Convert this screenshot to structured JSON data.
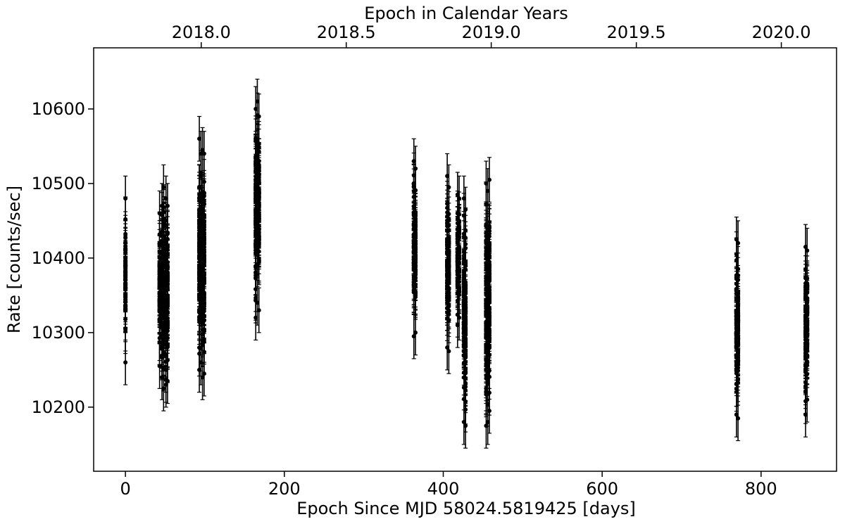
{
  "chart_data": {
    "type": "scatter",
    "title": "",
    "xlabel": "Epoch Since MJD 58024.5819425 [days]",
    "ylabel": "Rate [counts/sec]",
    "top_xlabel": "Epoch in Calendar Years",
    "xlim": [
      -40,
      895
    ],
    "ylim": [
      10114,
      10682
    ],
    "xticks": [
      0,
      200,
      400,
      600,
      800
    ],
    "yticks": [
      10200,
      10300,
      10400,
      10500,
      10600
    ],
    "top_xticks": [
      {
        "label": "2018.0",
        "day": 95.4
      },
      {
        "label": "2018.5",
        "day": 277.9
      },
      {
        "label": "2019.0",
        "day": 460.4
      },
      {
        "label": "2019.5",
        "day": 643.0
      },
      {
        "label": "2020.0",
        "day": 825.5
      }
    ],
    "marker_color": "#000000",
    "grid": false,
    "error_bar_typical": 30,
    "groups": [
      {
        "day": 0,
        "range": [
          10260,
          10480
        ]
      },
      {
        "day": 43,
        "range": [
          10255,
          10460
        ]
      },
      {
        "day": 46,
        "range": [
          10240,
          10470
        ]
      },
      {
        "day": 48,
        "range": [
          10225,
          10495
        ]
      },
      {
        "day": 51,
        "range": [
          10230,
          10480
        ]
      },
      {
        "day": 53,
        "range": [
          10235,
          10470
        ]
      },
      {
        "day": 93,
        "range": [
          10250,
          10560
        ]
      },
      {
        "day": 95,
        "range": [
          10260,
          10540
        ]
      },
      {
        "day": 97,
        "range": [
          10240,
          10545
        ]
      },
      {
        "day": 99,
        "range": [
          10245,
          10540
        ]
      },
      {
        "day": 164,
        "range": [
          10320,
          10600
        ]
      },
      {
        "day": 166,
        "range": [
          10340,
          10610
        ]
      },
      {
        "day": 168,
        "range": [
          10330,
          10590
        ]
      },
      {
        "day": 363,
        "range": [
          10295,
          10530
        ]
      },
      {
        "day": 365,
        "range": [
          10300,
          10520
        ]
      },
      {
        "day": 405,
        "range": [
          10280,
          10510
        ]
      },
      {
        "day": 407,
        "range": [
          10275,
          10495
        ]
      },
      {
        "day": 418,
        "range": [
          10310,
          10485
        ]
      },
      {
        "day": 420,
        "range": [
          10320,
          10480
        ]
      },
      {
        "day": 426,
        "range": [
          10180,
          10480
        ]
      },
      {
        "day": 428,
        "range": [
          10175,
          10465
        ]
      },
      {
        "day": 454,
        "range": [
          10175,
          10500
        ]
      },
      {
        "day": 456,
        "range": [
          10180,
          10490
        ]
      },
      {
        "day": 458,
        "range": [
          10195,
          10505
        ]
      },
      {
        "day": 769,
        "range": [
          10190,
          10425
        ]
      },
      {
        "day": 771,
        "range": [
          10185,
          10420
        ]
      },
      {
        "day": 856,
        "range": [
          10190,
          10415
        ]
      },
      {
        "day": 858,
        "range": [
          10210,
          10410
        ]
      }
    ]
  }
}
